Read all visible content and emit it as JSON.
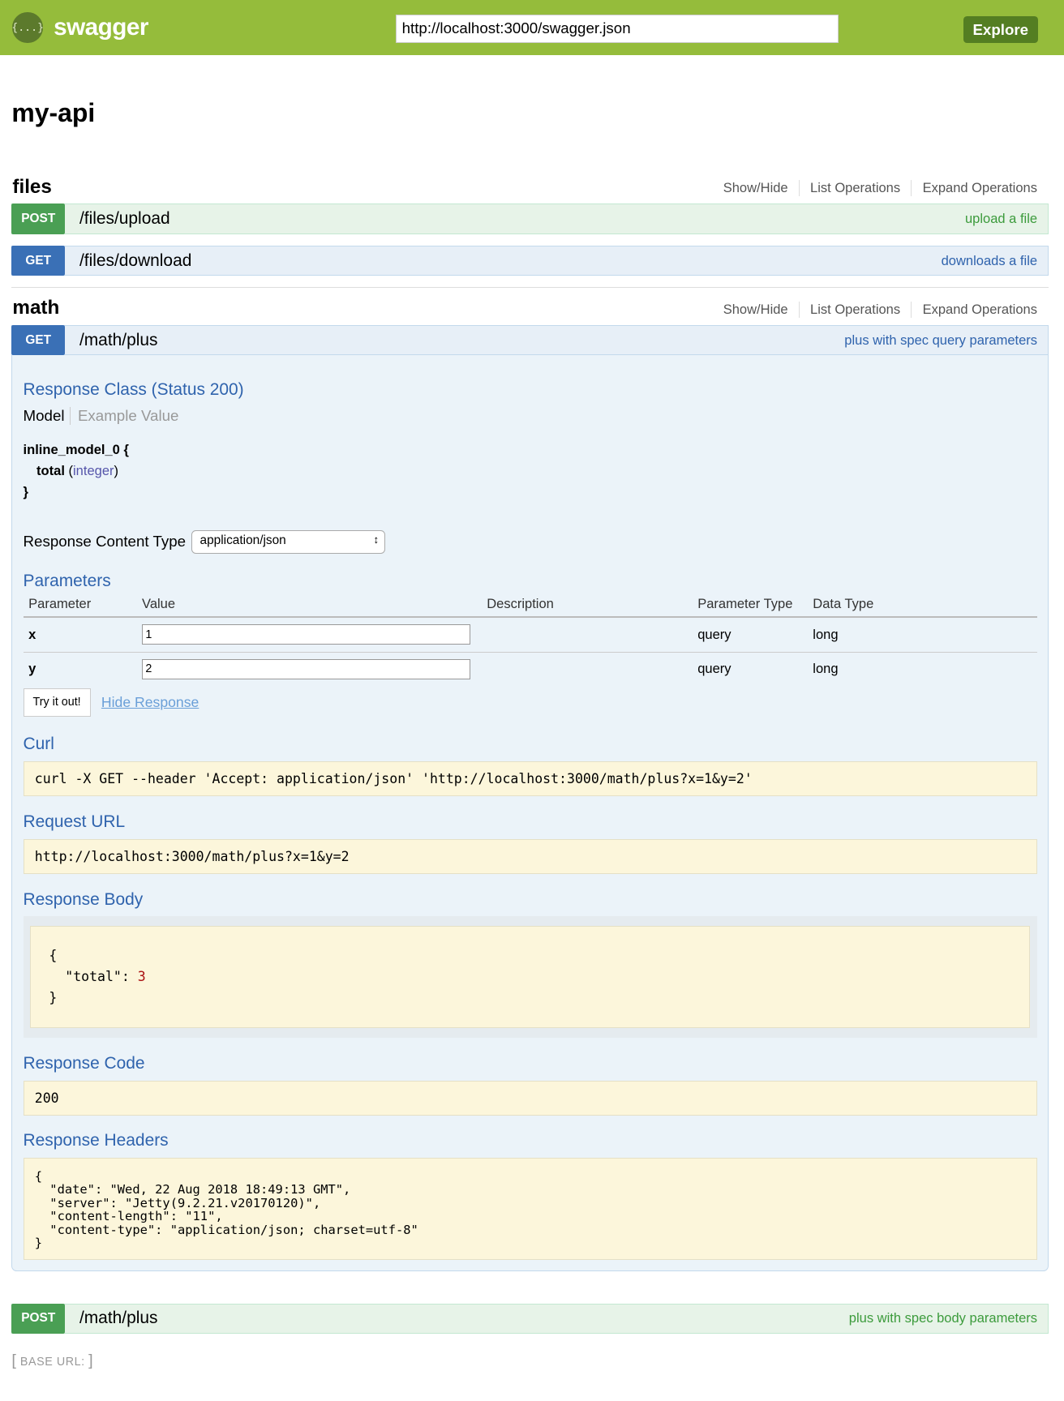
{
  "header": {
    "logo_text": "swagger",
    "logo_icon": "{...}",
    "url": "http://localhost:3000/swagger.json",
    "explore_label": "Explore"
  },
  "api_title": "my-api",
  "links": {
    "show_hide": "Show/Hide",
    "list": "List Operations",
    "expand": "Expand Operations"
  },
  "files": {
    "title": "files",
    "ops": [
      {
        "verb": "POST",
        "path": "/files/upload",
        "summary": "upload a file"
      },
      {
        "verb": "GET",
        "path": "/files/download",
        "summary": "downloads a file"
      }
    ]
  },
  "math": {
    "title": "math",
    "get": {
      "verb": "GET",
      "path": "/math/plus",
      "summary": "plus with spec query parameters"
    },
    "response_class": "Response Class (Status 200)",
    "tab_model": "Model",
    "tab_example": "Example Value",
    "model_name": "inline_model_0 {",
    "model_field": "total",
    "model_type": "integer",
    "model_close": "}",
    "rct_label": "Response Content Type",
    "rct_value": "application/json",
    "params_title": "Parameters",
    "param_headers": [
      "Parameter",
      "Value",
      "Description",
      "Parameter Type",
      "Data Type"
    ],
    "params": [
      {
        "name": "x",
        "value": "1",
        "description": "",
        "ptype": "query",
        "dtype": "long"
      },
      {
        "name": "y",
        "value": "2",
        "description": "",
        "ptype": "query",
        "dtype": "long"
      }
    ],
    "try_label": "Try it out!",
    "hide_label": "Hide Response",
    "curl_title": "Curl",
    "curl": "curl -X GET --header 'Accept: application/json' 'http://localhost:3000/math/plus?x=1&y=2'",
    "request_url_title": "Request URL",
    "request_url": "http://localhost:3000/math/plus?x=1&y=2",
    "response_body_title": "Response Body",
    "body_open": "{",
    "body_key": "  \"total\": ",
    "body_value": "3",
    "body_close": "}",
    "response_code_title": "Response Code",
    "response_code": "200",
    "response_headers_title": "Response Headers",
    "response_headers": "{\n  \"date\": \"Wed, 22 Aug 2018 18:49:13 GMT\",\n  \"server\": \"Jetty(9.2.21.v20170120)\",\n  \"content-length\": \"11\",\n  \"content-type\": \"application/json; charset=utf-8\"\n}",
    "post": {
      "verb": "POST",
      "path": "/math/plus",
      "summary": "plus with spec body parameters"
    }
  },
  "base_url": {
    "open": "[",
    "label": "BASE URL:",
    "close": "]"
  }
}
